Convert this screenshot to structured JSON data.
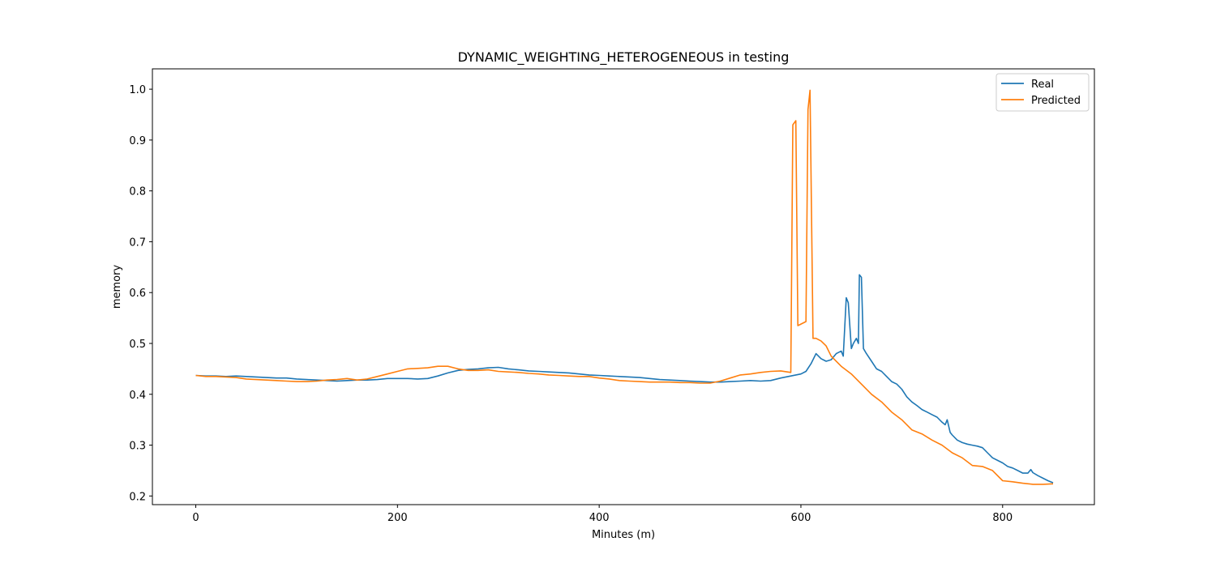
{
  "chart_data": {
    "type": "line",
    "title": "DYNAMIC_WEIGHTING_HETEROGENEOUS in testing",
    "xlabel": "Minutes (m)",
    "ylabel": "memory",
    "xlim": [
      -43,
      891
    ],
    "ylim": [
      0.183,
      1.04
    ],
    "xticks": [
      0,
      200,
      400,
      600,
      800
    ],
    "yticks": [
      0.2,
      0.3,
      0.4,
      0.5,
      0.6,
      0.7,
      0.8,
      0.9,
      1.0
    ],
    "ytick_labels": [
      "0.2",
      "0.3",
      "0.4",
      "0.5",
      "0.6",
      "0.7",
      "0.8",
      "0.9",
      "1.0"
    ],
    "grid": false,
    "legend_position": "top-right",
    "series": [
      {
        "name": "Real",
        "color": "#1f77b4",
        "x": [
          0,
          10,
          20,
          30,
          40,
          50,
          60,
          70,
          80,
          90,
          100,
          110,
          120,
          130,
          140,
          150,
          160,
          170,
          180,
          190,
          200,
          210,
          220,
          230,
          240,
          250,
          260,
          270,
          280,
          290,
          300,
          310,
          320,
          330,
          340,
          350,
          360,
          370,
          380,
          390,
          400,
          410,
          420,
          430,
          440,
          450,
          460,
          470,
          480,
          490,
          500,
          510,
          520,
          530,
          540,
          550,
          560,
          570,
          580,
          590,
          600,
          605,
          610,
          615,
          620,
          625,
          630,
          635,
          640,
          642,
          645,
          647,
          650,
          652,
          655,
          657,
          658,
          660,
          662,
          665,
          670,
          675,
          680,
          685,
          690,
          695,
          700,
          705,
          710,
          715,
          720,
          725,
          730,
          735,
          740,
          743,
          745,
          748,
          750,
          755,
          760,
          765,
          770,
          775,
          780,
          785,
          790,
          795,
          800,
          805,
          810,
          815,
          820,
          825,
          828,
          830,
          835,
          840,
          845,
          850
        ],
        "y": [
          0.437,
          0.436,
          0.436,
          0.435,
          0.436,
          0.435,
          0.434,
          0.433,
          0.432,
          0.432,
          0.43,
          0.429,
          0.428,
          0.427,
          0.426,
          0.427,
          0.428,
          0.428,
          0.429,
          0.431,
          0.431,
          0.431,
          0.43,
          0.431,
          0.436,
          0.442,
          0.447,
          0.449,
          0.45,
          0.452,
          0.453,
          0.45,
          0.448,
          0.446,
          0.445,
          0.444,
          0.443,
          0.442,
          0.44,
          0.438,
          0.437,
          0.436,
          0.435,
          0.434,
          0.433,
          0.431,
          0.429,
          0.428,
          0.427,
          0.426,
          0.425,
          0.424,
          0.424,
          0.425,
          0.426,
          0.427,
          0.426,
          0.427,
          0.432,
          0.436,
          0.44,
          0.445,
          0.46,
          0.48,
          0.47,
          0.465,
          0.468,
          0.48,
          0.485,
          0.475,
          0.59,
          0.58,
          0.49,
          0.5,
          0.51,
          0.5,
          0.635,
          0.63,
          0.49,
          0.48,
          0.465,
          0.45,
          0.445,
          0.435,
          0.425,
          0.42,
          0.41,
          0.395,
          0.385,
          0.378,
          0.37,
          0.365,
          0.36,
          0.355,
          0.345,
          0.34,
          0.35,
          0.325,
          0.32,
          0.31,
          0.305,
          0.302,
          0.3,
          0.298,
          0.295,
          0.285,
          0.275,
          0.27,
          0.265,
          0.258,
          0.255,
          0.25,
          0.245,
          0.245,
          0.252,
          0.246,
          0.24,
          0.235,
          0.23,
          0.226
        ]
      },
      {
        "name": "Predicted",
        "color": "#ff7f0e",
        "x": [
          0,
          10,
          20,
          30,
          40,
          50,
          60,
          70,
          80,
          90,
          100,
          110,
          120,
          130,
          140,
          150,
          160,
          170,
          180,
          190,
          200,
          210,
          220,
          230,
          240,
          250,
          260,
          270,
          280,
          290,
          300,
          310,
          320,
          330,
          340,
          350,
          360,
          370,
          380,
          390,
          400,
          410,
          420,
          430,
          440,
          450,
          460,
          470,
          480,
          490,
          500,
          510,
          520,
          530,
          540,
          550,
          560,
          570,
          580,
          590,
          592,
          595,
          597,
          600,
          605,
          607,
          609,
          612,
          615,
          620,
          625,
          630,
          640,
          650,
          660,
          670,
          680,
          690,
          700,
          710,
          720,
          730,
          740,
          750,
          760,
          770,
          780,
          790,
          800,
          810,
          820,
          830,
          840,
          850
        ],
        "y": [
          0.437,
          0.435,
          0.435,
          0.434,
          0.433,
          0.43,
          0.429,
          0.428,
          0.427,
          0.426,
          0.425,
          0.425,
          0.426,
          0.428,
          0.429,
          0.431,
          0.428,
          0.43,
          0.435,
          0.44,
          0.445,
          0.45,
          0.451,
          0.452,
          0.455,
          0.455,
          0.45,
          0.447,
          0.447,
          0.448,
          0.445,
          0.444,
          0.443,
          0.441,
          0.44,
          0.438,
          0.437,
          0.436,
          0.435,
          0.435,
          0.432,
          0.43,
          0.427,
          0.426,
          0.425,
          0.424,
          0.424,
          0.424,
          0.423,
          0.423,
          0.422,
          0.422,
          0.426,
          0.432,
          0.438,
          0.44,
          0.443,
          0.445,
          0.446,
          0.443,
          0.93,
          0.938,
          0.535,
          0.538,
          0.543,
          0.96,
          0.998,
          0.51,
          0.51,
          0.505,
          0.495,
          0.475,
          0.455,
          0.44,
          0.42,
          0.4,
          0.385,
          0.365,
          0.35,
          0.33,
          0.322,
          0.31,
          0.3,
          0.285,
          0.275,
          0.26,
          0.258,
          0.25,
          0.23,
          0.228,
          0.225,
          0.223,
          0.223,
          0.224
        ]
      }
    ]
  }
}
